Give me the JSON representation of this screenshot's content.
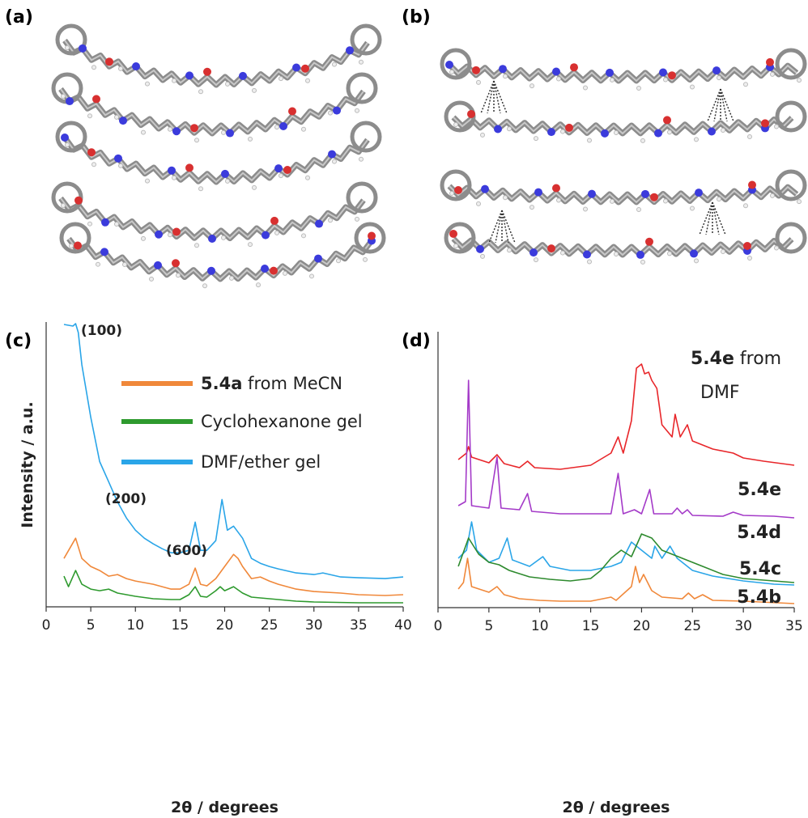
{
  "figure_labels": [
    "(a)",
    "(b)"
  ],
  "chart_data": [
    {
      "type": "line",
      "panel_label": "(c)",
      "y_label": "Intensity / a.u.",
      "x_label": "2θ / degrees",
      "xlim": [
        0,
        40
      ],
      "xticks": [
        0,
        5,
        10,
        15,
        20,
        25,
        30,
        35,
        40
      ],
      "ylim": [
        0,
        350
      ],
      "legend": "upper center",
      "annotations": [
        "(100)",
        "(200)",
        "(600)"
      ],
      "series": [
        {
          "name": "5.4a from MeCN",
          "color": "#f0883a",
          "x": [
            2,
            3.3,
            4,
            5,
            6,
            7,
            8,
            9,
            10,
            12,
            14,
            15,
            16,
            16.7,
            17.3,
            18,
            19,
            20,
            21,
            21.5,
            22,
            23,
            24,
            25,
            26,
            28,
            30,
            33,
            35,
            38,
            40
          ],
          "values": [
            59,
            84,
            59,
            49,
            44,
            37,
            39,
            34,
            31,
            27,
            21,
            21,
            27,
            47,
            27,
            25,
            34,
            49,
            64,
            59,
            49,
            34,
            36,
            31,
            27,
            21,
            18,
            16,
            14,
            13,
            14
          ]
        },
        {
          "name": "Cyclohexanone gel",
          "color": "#2e9a2e",
          "x": [
            2,
            2.5,
            3.3,
            4,
            5,
            6,
            7,
            8,
            10,
            12,
            14,
            15,
            16,
            16.7,
            17.3,
            18,
            19,
            19.5,
            20,
            21,
            22,
            23,
            25,
            28,
            30,
            35,
            40
          ],
          "values": [
            37,
            24,
            44,
            27,
            21,
            19,
            21,
            16,
            12,
            9,
            8,
            8,
            14,
            24,
            12,
            11,
            19,
            24,
            19,
            24,
            16,
            11,
            9,
            6,
            5,
            4,
            4
          ]
        },
        {
          "name": "DMF/ether gel",
          "color": "#2aa5e8",
          "x": [
            2,
            3,
            3.3,
            3.6,
            4,
            5,
            6,
            7,
            8,
            9,
            10,
            11,
            12,
            13,
            14,
            15,
            16,
            16.7,
            17.3,
            18,
            19,
            19.7,
            20.3,
            21,
            22,
            23,
            24,
            25,
            26,
            28,
            30,
            31,
            33,
            35,
            38,
            40
          ],
          "values": [
            349,
            347,
            350,
            339,
            299,
            234,
            179,
            154,
            129,
            109,
            94,
            84,
            77,
            71,
            66,
            66,
            69,
            104,
            69,
            69,
            81,
            132,
            94,
            99,
            84,
            59,
            53,
            49,
            46,
            41,
            39,
            41,
            36,
            35,
            34,
            36
          ]
        }
      ]
    },
    {
      "type": "line",
      "panel_label": "(d)",
      "x_label": "2θ / degrees",
      "xlim": [
        0,
        35
      ],
      "xticks": [
        0,
        5,
        10,
        15,
        20,
        25,
        30,
        35
      ],
      "ylim": [
        0,
        340
      ],
      "series_labels": "inline",
      "series": [
        {
          "name": "5.4e from DMF",
          "color": "#e8262a",
          "x": [
            2,
            2.8,
            3,
            3.3,
            5,
            5.8,
            6.5,
            8,
            8.8,
            9.5,
            12,
            15,
            17,
            17.7,
            18.2,
            19,
            19.5,
            20,
            20.3,
            20.7,
            21,
            21.5,
            22,
            23,
            23.3,
            23.8,
            24.5,
            25,
            27,
            29,
            30,
            32,
            35
          ],
          "values": [
            182,
            190,
            198,
            185,
            178,
            188,
            177,
            172,
            180,
            172,
            170,
            175,
            190,
            210,
            190,
            230,
            295,
            300,
            288,
            290,
            280,
            270,
            225,
            210,
            238,
            210,
            225,
            205,
            195,
            190,
            184,
            180,
            175
          ]
        },
        {
          "name": "5.4e",
          "color": "#a43ac8",
          "x": [
            2,
            2.7,
            3,
            3.3,
            5,
            5.8,
            6.2,
            8,
            8.8,
            9.2,
            12,
            15,
            17,
            17.7,
            18.2,
            19.3,
            20,
            20.8,
            21.2,
            23,
            23.5,
            24,
            24.5,
            25,
            28,
            29,
            30,
            33,
            35
          ],
          "values": [
            125,
            130,
            280,
            125,
            122,
            185,
            122,
            120,
            140,
            118,
            115,
            115,
            115,
            165,
            115,
            120,
            115,
            145,
            115,
            115,
            122,
            115,
            120,
            113,
            112,
            117,
            113,
            112,
            110
          ]
        },
        {
          "name": "5.4d",
          "color": "#2aa5e8",
          "x": [
            2,
            2.8,
            3.3,
            3.8,
            5,
            6,
            6.8,
            7.3,
            9,
            10.3,
            11,
            13,
            15,
            17,
            18,
            19,
            20,
            21,
            21.3,
            22,
            22.8,
            23.5,
            25,
            27,
            30,
            33,
            35
          ],
          "values": [
            60,
            70,
            105,
            70,
            55,
            60,
            85,
            58,
            50,
            62,
            50,
            45,
            45,
            50,
            55,
            80,
            70,
            60,
            75,
            60,
            75,
            60,
            45,
            38,
            32,
            28,
            27
          ]
        },
        {
          "name": "5.4c",
          "color": "#2e8a2e",
          "x": [
            2,
            3,
            4,
            5,
            6,
            7,
            9,
            11,
            13,
            15,
            16,
            17,
            18,
            19,
            20,
            21,
            22,
            24,
            26,
            28,
            30,
            33,
            35
          ],
          "values": [
            50,
            85,
            65,
            55,
            52,
            45,
            37,
            34,
            32,
            35,
            45,
            60,
            70,
            62,
            90,
            85,
            70,
            60,
            50,
            40,
            35,
            32,
            30
          ]
        },
        {
          "name": "5.4b",
          "color": "#f0883a",
          "x": [
            2,
            2.5,
            2.9,
            3.3,
            5,
            5.8,
            6.5,
            8,
            10,
            12,
            15,
            17,
            17.5,
            19,
            19.4,
            19.8,
            20.2,
            21,
            22,
            24,
            24.6,
            25.2,
            26,
            27,
            30,
            35
          ],
          "values": [
            22,
            30,
            60,
            25,
            18,
            25,
            15,
            10,
            8,
            7,
            7,
            12,
            8,
            25,
            50,
            30,
            40,
            20,
            12,
            10,
            17,
            10,
            15,
            8,
            7,
            4
          ]
        }
      ]
    }
  ]
}
